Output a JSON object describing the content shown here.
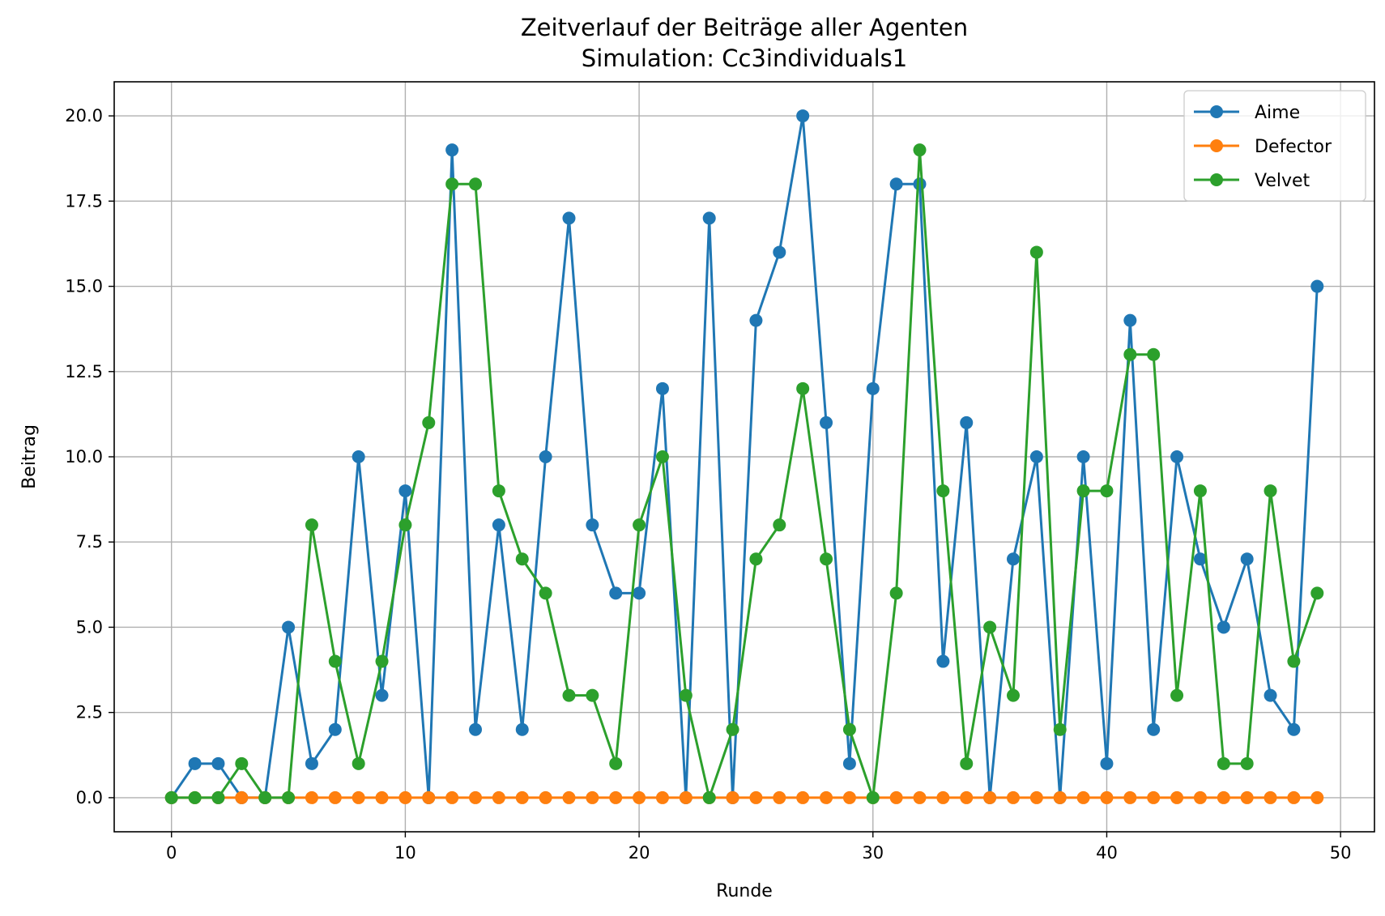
{
  "chart_data": {
    "type": "line",
    "title": "Zeitverlauf der Beiträge aller Agenten",
    "subtitle": "Simulation: Cc3individuals1",
    "xlabel": "Runde",
    "ylabel": "Beitrag",
    "xlim": [
      -2.45,
      51.45
    ],
    "ylim": [
      -1.0,
      21.0
    ],
    "xticks": [
      0,
      10,
      20,
      30,
      40,
      50
    ],
    "yticks": [
      0.0,
      2.5,
      5.0,
      7.5,
      10.0,
      12.5,
      15.0,
      17.5,
      20.0
    ],
    "ytick_labels": [
      "0.0",
      "2.5",
      "5.0",
      "7.5",
      "10.0",
      "12.5",
      "15.0",
      "17.5",
      "20.0"
    ],
    "xtick_labels": [
      "0",
      "10",
      "20",
      "30",
      "40",
      "50"
    ],
    "grid": true,
    "legend": "top-right",
    "x": [
      0,
      1,
      2,
      3,
      4,
      5,
      6,
      7,
      8,
      9,
      10,
      11,
      12,
      13,
      14,
      15,
      16,
      17,
      18,
      19,
      20,
      21,
      22,
      23,
      24,
      25,
      26,
      27,
      28,
      29,
      30,
      31,
      32,
      33,
      34,
      35,
      36,
      37,
      38,
      39,
      40,
      41,
      42,
      43,
      44,
      45,
      46,
      47,
      48,
      49
    ],
    "series": [
      {
        "name": "Aime",
        "color": "#1f77b4",
        "values": [
          0,
          1,
          1,
          0,
          0,
          5,
          1,
          2,
          10,
          3,
          9,
          0,
          19,
          2,
          8,
          2,
          10,
          17,
          8,
          6,
          6,
          12,
          0,
          17,
          0,
          14,
          16,
          20,
          11,
          1,
          12,
          18,
          18,
          4,
          11,
          0,
          7,
          10,
          0,
          10,
          1,
          14,
          2,
          10,
          7,
          5,
          7,
          3,
          2,
          15
        ]
      },
      {
        "name": "Defector",
        "color": "#ff7f0e",
        "values": [
          0,
          0,
          0,
          0,
          0,
          0,
          0,
          0,
          0,
          0,
          0,
          0,
          0,
          0,
          0,
          0,
          0,
          0,
          0,
          0,
          0,
          0,
          0,
          0,
          0,
          0,
          0,
          0,
          0,
          0,
          0,
          0,
          0,
          0,
          0,
          0,
          0,
          0,
          0,
          0,
          0,
          0,
          0,
          0,
          0,
          0,
          0,
          0,
          0,
          0
        ]
      },
      {
        "name": "Velvet",
        "color": "#2ca02c",
        "values": [
          0,
          0,
          0,
          1,
          0,
          0,
          8,
          4,
          1,
          4,
          8,
          11,
          18,
          18,
          9,
          7,
          6,
          3,
          3,
          1,
          8,
          10,
          3,
          0,
          2,
          7,
          8,
          12,
          7,
          2,
          0,
          6,
          19,
          9,
          1,
          5,
          3,
          16,
          2,
          9,
          9,
          13,
          13,
          3,
          9,
          1,
          1,
          9,
          4,
          6
        ]
      }
    ]
  }
}
